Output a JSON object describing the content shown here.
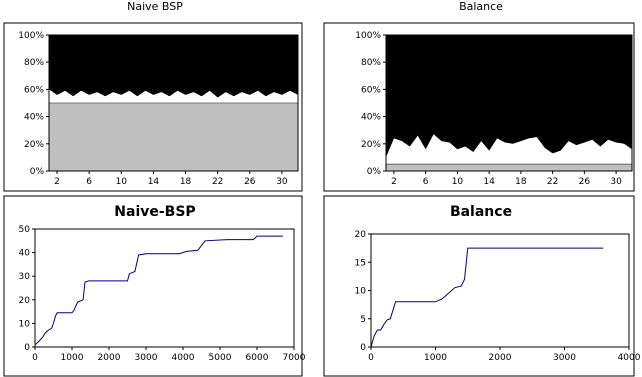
{
  "chart_data": [
    {
      "type": "area",
      "title": "Naive BSP",
      "xlabel": "",
      "ylabel": "",
      "xlim": [
        1,
        32
      ],
      "ylim": [
        0,
        100
      ],
      "x_ticks": [
        2,
        6,
        10,
        14,
        18,
        22,
        26,
        30
      ],
      "y_ticks": [
        0,
        20,
        40,
        60,
        80,
        100
      ],
      "y_tick_suffix": "%",
      "x": [
        1,
        2,
        3,
        4,
        5,
        6,
        7,
        8,
        9,
        10,
        11,
        12,
        13,
        14,
        15,
        16,
        17,
        18,
        19,
        20,
        21,
        22,
        23,
        24,
        25,
        26,
        27,
        28,
        29,
        30,
        31,
        32
      ],
      "layers": [
        {
          "color": "#c0c0c0",
          "values": [
            50,
            50,
            50,
            50,
            50,
            50,
            50,
            50,
            50,
            50,
            50,
            50,
            50,
            50,
            50,
            50,
            50,
            50,
            50,
            50,
            50,
            50,
            50,
            50,
            50,
            50,
            50,
            50,
            50,
            50,
            50,
            50
          ]
        },
        {
          "color": "#ffffff",
          "values": [
            60,
            56,
            59,
            55,
            59,
            56,
            58,
            55,
            58,
            56,
            59,
            55,
            59,
            56,
            58,
            55,
            59,
            56,
            58,
            55,
            59,
            54,
            58,
            55,
            58,
            56,
            59,
            55,
            58,
            56,
            59,
            56
          ]
        },
        {
          "color": "#000000",
          "values": [
            100,
            100,
            100,
            100,
            100,
            100,
            100,
            100,
            100,
            100,
            100,
            100,
            100,
            100,
            100,
            100,
            100,
            100,
            100,
            100,
            100,
            100,
            100,
            100,
            100,
            100,
            100,
            100,
            100,
            100,
            100,
            100
          ]
        }
      ]
    },
    {
      "type": "area",
      "title": "Balance",
      "xlabel": "",
      "ylabel": "",
      "xlim": [
        1,
        32
      ],
      "ylim": [
        0,
        100
      ],
      "x_ticks": [
        2,
        6,
        10,
        14,
        18,
        22,
        26,
        30
      ],
      "y_ticks": [
        0,
        20,
        40,
        60,
        80,
        100
      ],
      "y_tick_suffix": "%",
      "x": [
        1,
        2,
        3,
        4,
        5,
        6,
        7,
        8,
        9,
        10,
        11,
        12,
        13,
        14,
        15,
        16,
        17,
        18,
        19,
        20,
        21,
        22,
        23,
        24,
        25,
        26,
        27,
        28,
        29,
        30,
        31,
        32
      ],
      "layers": [
        {
          "color": "#c0c0c0",
          "values": [
            5,
            5,
            5,
            5,
            5,
            5,
            5,
            5,
            5,
            5,
            5,
            5,
            5,
            5,
            5,
            5,
            5,
            5,
            5,
            5,
            5,
            5,
            5,
            5,
            5,
            5,
            5,
            5,
            5,
            5,
            5,
            5
          ]
        },
        {
          "color": "#ffffff",
          "values": [
            10,
            24,
            22,
            18,
            26,
            16,
            27,
            22,
            21,
            16,
            18,
            14,
            22,
            15,
            24,
            21,
            20,
            22,
            24,
            25,
            17,
            13,
            15,
            22,
            19,
            21,
            23,
            18,
            23,
            21,
            20,
            16
          ]
        },
        {
          "color": "#000000",
          "values": [
            100,
            100,
            100,
            100,
            100,
            100,
            100,
            100,
            100,
            100,
            100,
            100,
            100,
            100,
            100,
            100,
            100,
            100,
            100,
            100,
            100,
            100,
            100,
            100,
            100,
            100,
            100,
            100,
            100,
            100,
            100,
            100
          ]
        }
      ]
    },
    {
      "type": "line",
      "title": "Naive-BSP",
      "xlabel": "",
      "ylabel": "",
      "xlim": [
        0,
        7000
      ],
      "ylim": [
        0,
        50
      ],
      "x_ticks": [
        0,
        1000,
        2000,
        3000,
        4000,
        5000,
        6000,
        7000
      ],
      "y_ticks": [
        0,
        10,
        20,
        30,
        40,
        50
      ],
      "color": "#000080",
      "series": [
        {
          "x": [
            0,
            80,
            200,
            280,
            350,
            450,
            500,
            550,
            600,
            1000,
            1050,
            1150,
            1300,
            1350,
            1450,
            1600,
            2500,
            2550,
            2700,
            2800,
            3000,
            3900,
            4100,
            4400,
            4600,
            5200,
            5900,
            6000,
            6700
          ],
          "y": [
            1,
            2,
            4,
            6,
            7,
            8,
            10,
            13,
            14.5,
            14.5,
            15.5,
            19,
            20,
            27.5,
            28,
            28,
            28,
            31,
            32,
            39,
            39.5,
            39.5,
            40.5,
            41,
            45,
            45.5,
            45.5,
            47,
            47
          ]
        }
      ]
    },
    {
      "type": "line",
      "title": "Balance",
      "xlabel": "",
      "ylabel": "",
      "xlim": [
        0,
        4000
      ],
      "ylim": [
        0,
        20
      ],
      "x_ticks": [
        0,
        1000,
        2000,
        3000,
        4000
      ],
      "y_ticks": [
        0,
        5,
        10,
        15,
        20
      ],
      "color": "#000080",
      "series": [
        {
          "x": [
            0,
            50,
            100,
            150,
            200,
            250,
            300,
            380,
            450,
            1000,
            1100,
            1200,
            1300,
            1400,
            1450,
            1500,
            1550,
            3600
          ],
          "y": [
            0,
            2,
            3,
            3,
            4,
            4.8,
            5,
            8,
            8,
            8,
            8.5,
            9.5,
            10.5,
            10.8,
            12,
            17.5,
            17.5,
            17.5
          ]
        }
      ]
    }
  ]
}
